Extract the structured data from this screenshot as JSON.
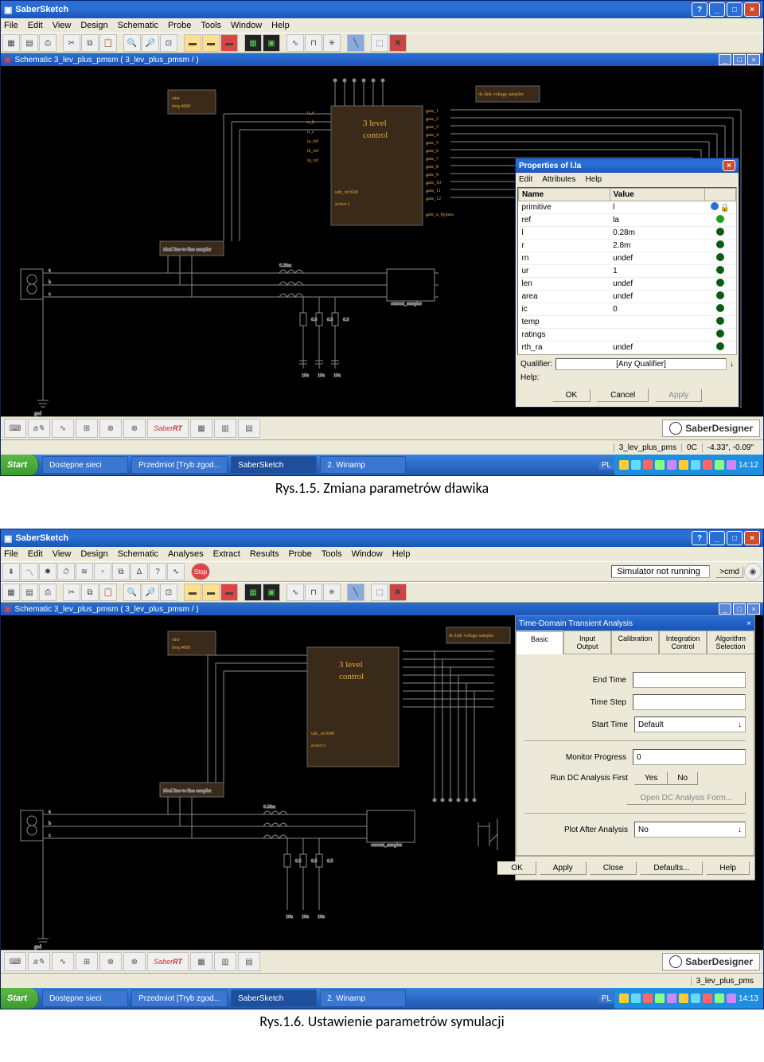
{
  "fig1": {
    "caption": "Rys.1.5. Zmiana parametrów dławika",
    "appTitle": "SaberSketch",
    "menus": [
      "File",
      "Edit",
      "View",
      "Design",
      "Schematic",
      "Probe",
      "Tools",
      "Window",
      "Help"
    ],
    "docTitle": "Schematic 3_lev_plus_pmsm ( 3_lev_plus_pmsm / )",
    "blockTitle": "3 level",
    "blockSub": "control",
    "blockLabel1": "udc_ref:600",
    "blockLabel2": "active:1",
    "sinebox1": "sine",
    "sinebox2": "freq:4000",
    "dcbox": "dc-link voltage sampler",
    "props": {
      "title": "Properties of l.la",
      "menus": [
        "Edit",
        "Attributes",
        "Help"
      ],
      "cols": [
        "Name",
        "Value"
      ],
      "rows": [
        {
          "name": "primitive",
          "value": "l",
          "lock": true
        },
        {
          "name": "ref",
          "value": "la",
          "green": true
        },
        {
          "name": "l",
          "value": "0.28m"
        },
        {
          "name": "r",
          "value": "2.8m"
        },
        {
          "name": "rn",
          "value": "undef"
        },
        {
          "name": "ur",
          "value": "1"
        },
        {
          "name": "len",
          "value": "undef"
        },
        {
          "name": "area",
          "value": "undef"
        },
        {
          "name": "ic",
          "value": "0"
        },
        {
          "name": "temp",
          "value": ""
        },
        {
          "name": "ratings",
          "value": ""
        },
        {
          "name": "rth_ra",
          "value": "undef"
        }
      ],
      "qualifierLabel": "Qualifier:",
      "qualifierValue": "[Any Qualifier]",
      "helpLabel": "Help:",
      "ok": "OK",
      "cancel": "Cancel",
      "apply": "Apply"
    },
    "designer": "SaberDesigner",
    "status": [
      "3_lev_plus_pms",
      "0C",
      "-4.33\", -0.09\""
    ],
    "taskbar": {
      "start": "Start",
      "items": [
        "Dostępne sieci",
        "Przedmiot [Tryb zgod...",
        "SaberSketch",
        "2. Winamp"
      ],
      "lang": "PL",
      "time": "14:12"
    }
  },
  "fig2": {
    "caption": "Rys.1.6. Ustawienie parametrów symulacji",
    "appTitle": "SaberSketch",
    "menus": [
      "File",
      "Edit",
      "View",
      "Design",
      "Schematic",
      "Analyses",
      "Extract",
      "Results",
      "Probe",
      "Tools",
      "Window",
      "Help"
    ],
    "simStatus": "Simulator not running",
    "cmd": ">cmd",
    "docTitle": "Schematic 3_lev_plus_pmsm ( 3_lev_plus_pmsm / )",
    "blockTitle": "3 level",
    "blockSub": "control",
    "blockLabel1": "udc_ref:600",
    "blockLabel2": "active:1",
    "sinebox1": "sine",
    "sinebox2": "freq:4000",
    "dcbox": "dc-link voltage sampler",
    "transient": {
      "title": "Time-Domain Transient Analysis",
      "tabs": [
        "Basic",
        "Input\nOutput",
        "Calibration",
        "Integration\nControl",
        "Algorithm\nSelection"
      ],
      "endTime": "End Time",
      "timeStep": "Time Step",
      "startTime": "Start Time",
      "startDefault": "Default",
      "monitor": "Monitor Progress",
      "monitorVal": "0",
      "runDC": "Run DC Analysis First",
      "yes": "Yes",
      "no": "No",
      "openDC": "Open DC Analysis Form...",
      "plotAfter": "Plot After Analysis",
      "plotNo": "No",
      "ok": "OK",
      "apply": "Apply",
      "close": "Close",
      "defaults": "Defaults...",
      "help": "Help"
    },
    "designer": "SaberDesigner",
    "status": [
      "3_lev_plus_pms"
    ],
    "taskbar": {
      "start": "Start",
      "items": [
        "Dostępne sieci",
        "Przedmiot [Tryb zgod...",
        "SaberSketch",
        "2. Winamp"
      ],
      "lang": "PL",
      "time": "14:13"
    }
  },
  "colors": {
    "xpblue": "#2a6ed5",
    "xpgreen": "#3d9a2e",
    "canvas": "#000000",
    "wire": "#888888",
    "label": "#e6a83c",
    "panel": "#ece9d8"
  }
}
